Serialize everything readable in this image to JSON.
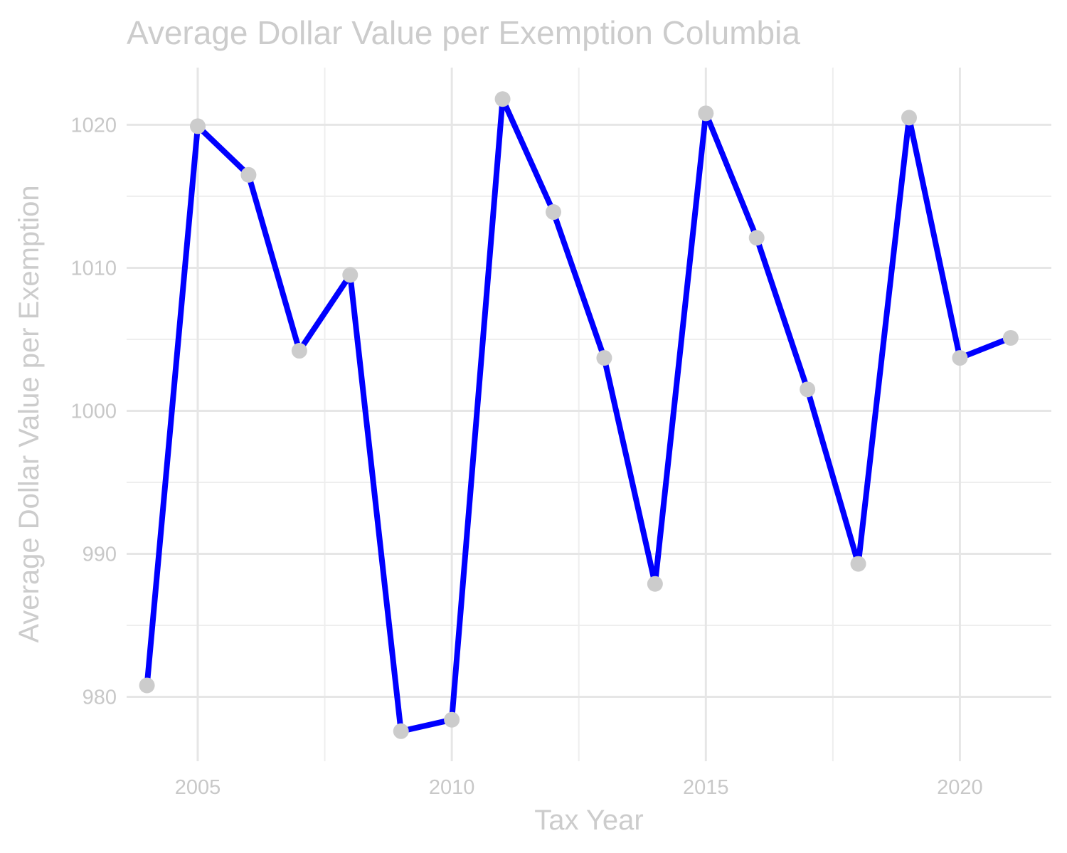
{
  "chart_data": {
    "type": "line",
    "title": "Average Dollar Value per Exemption Columbia",
    "xlabel": "Tax Year",
    "ylabel": "Average Dollar Value per Exemption",
    "x": [
      2004,
      2005,
      2006,
      2007,
      2008,
      2009,
      2010,
      2011,
      2012,
      2013,
      2014,
      2015,
      2016,
      2017,
      2018,
      2019,
      2020,
      2021
    ],
    "series": [
      {
        "values": [
          980.8,
          1019.9,
          1016.5,
          1004.2,
          1009.5,
          977.6,
          978.4,
          1021.8,
          1013.9,
          1003.7,
          987.9,
          1020.8,
          1012.1,
          1001.5,
          989.3,
          1020.5,
          1003.7,
          1005.1
        ],
        "line_color": "#0000ff",
        "marker_color": "#cccccc"
      }
    ],
    "xlim": [
      2003.6,
      2021.8
    ],
    "ylim": [
      975.5,
      1024
    ],
    "xticks": [
      2005,
      2010,
      2015,
      2020
    ],
    "xtick_labels": [
      "2005",
      "2010",
      "2015",
      "2020"
    ],
    "yticks": [
      980,
      990,
      1000,
      1010,
      1020
    ],
    "ytick_labels": [
      "980",
      "990",
      "1000",
      "1010",
      "1020"
    ],
    "grid": true,
    "legend": "none"
  }
}
